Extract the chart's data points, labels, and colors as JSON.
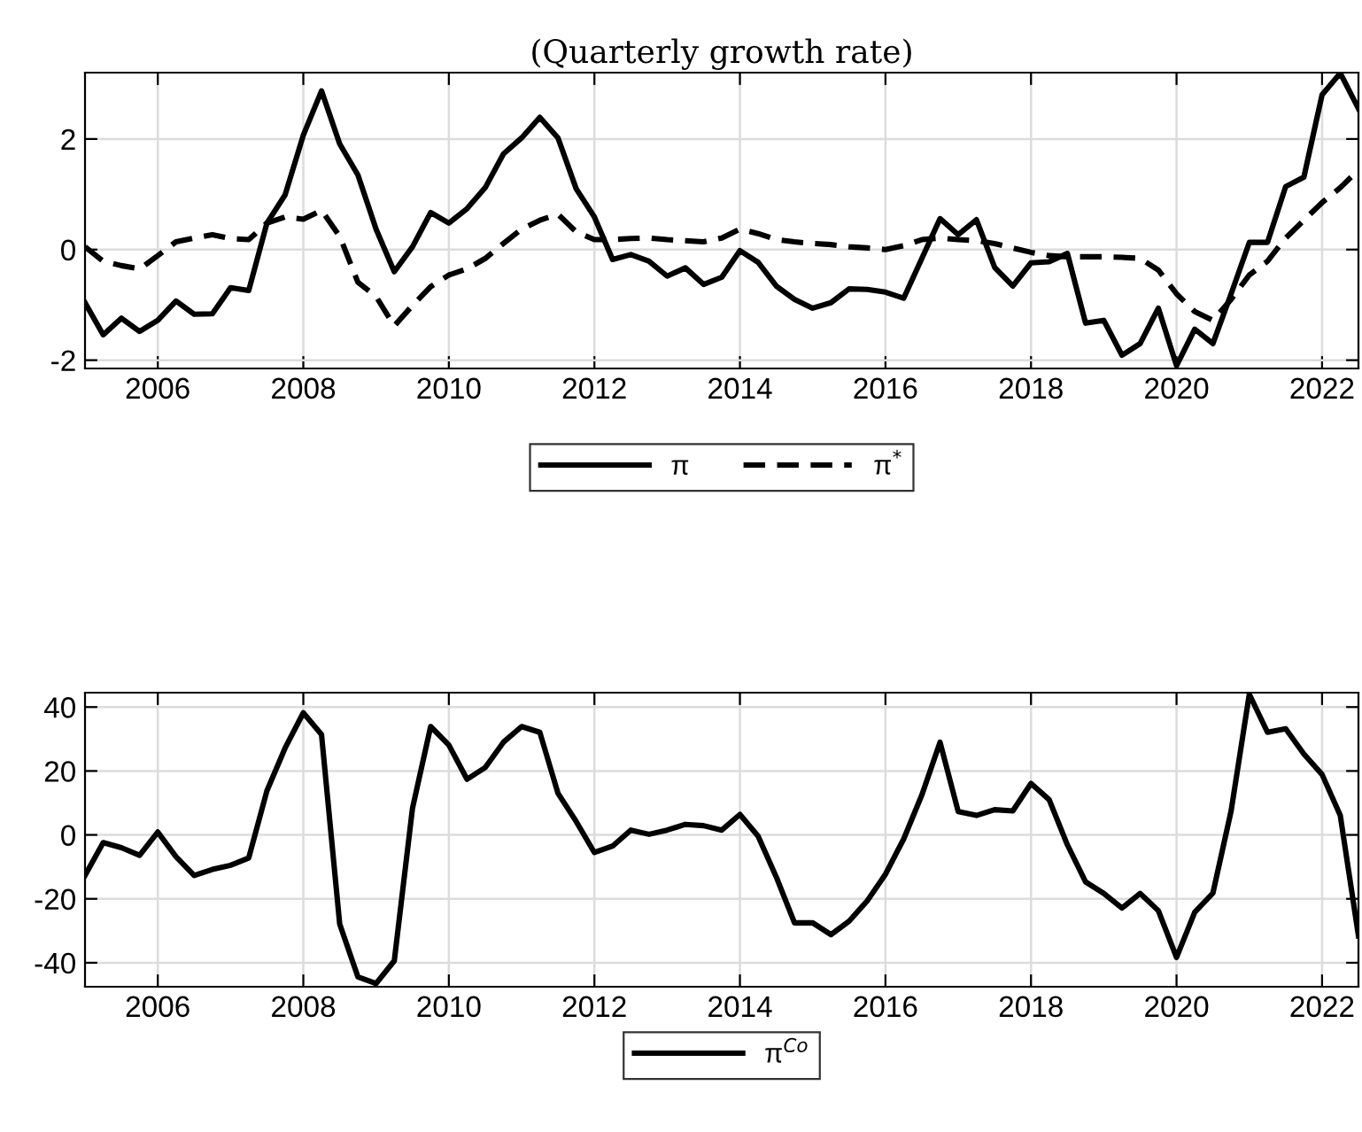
{
  "chart_data": [
    {
      "type": "line",
      "title": "(Quarterly growth rate)",
      "x": [
        2005.0,
        2005.25,
        2005.5,
        2005.75,
        2006.0,
        2006.25,
        2006.5,
        2006.75,
        2007.0,
        2007.25,
        2007.5,
        2007.75,
        2008.0,
        2008.25,
        2008.5,
        2008.75,
        2009.0,
        2009.25,
        2009.5,
        2009.75,
        2010.0,
        2010.25,
        2010.5,
        2010.75,
        2011.0,
        2011.25,
        2011.5,
        2011.75,
        2012.0,
        2012.25,
        2012.5,
        2012.75,
        2013.0,
        2013.25,
        2013.5,
        2013.75,
        2014.0,
        2014.25,
        2014.5,
        2014.75,
        2015.0,
        2015.25,
        2015.5,
        2015.75,
        2016.0,
        2016.25,
        2016.5,
        2016.75,
        2017.0,
        2017.25,
        2017.5,
        2017.75,
        2018.0,
        2018.25,
        2018.5,
        2018.75,
        2019.0,
        2019.25,
        2019.5,
        2019.75,
        2020.0,
        2020.25,
        2020.5,
        2020.75,
        2021.0,
        2021.25,
        2021.5,
        2021.75,
        2022.0,
        2022.25,
        2022.5
      ],
      "series": [
        {
          "name": "π",
          "color": "#000000",
          "line_style": "solid",
          "values": [
            -0.96,
            -1.54,
            -1.24,
            -1.48,
            -1.28,
            -0.93,
            -1.17,
            -1.16,
            -0.69,
            -0.74,
            0.48,
            0.99,
            2.07,
            2.87,
            1.91,
            1.35,
            0.37,
            -0.4,
            0.05,
            0.67,
            0.48,
            0.74,
            1.12,
            1.73,
            2.02,
            2.39,
            2.02,
            1.1,
            0.59,
            -0.18,
            -0.09,
            -0.21,
            -0.48,
            -0.33,
            -0.63,
            -0.5,
            -0.02,
            -0.23,
            -0.66,
            -0.9,
            -1.06,
            -0.96,
            -0.71,
            -0.72,
            -0.77,
            -0.88,
            -0.16,
            0.56,
            0.27,
            0.54,
            -0.32,
            -0.66,
            -0.24,
            -0.22,
            -0.07,
            -1.33,
            -1.28,
            -1.91,
            -1.7,
            -1.06,
            -2.1,
            -1.44,
            -1.7,
            -0.8,
            0.13,
            0.13,
            1.14,
            1.31,
            2.8,
            3.19,
            2.55
          ]
        },
        {
          "name": "π$^{*}$",
          "color": "#000000",
          "line_style": "dashed",
          "values": [
            0.05,
            -0.21,
            -0.29,
            -0.35,
            -0.11,
            0.14,
            0.21,
            0.27,
            0.2,
            0.18,
            0.48,
            0.59,
            0.55,
            0.71,
            0.24,
            -0.59,
            -0.85,
            -1.38,
            -1.01,
            -0.67,
            -0.46,
            -0.35,
            -0.16,
            0.11,
            0.37,
            0.53,
            0.64,
            0.32,
            0.18,
            0.18,
            0.2,
            0.21,
            0.18,
            0.16,
            0.14,
            0.21,
            0.37,
            0.29,
            0.18,
            0.14,
            0.11,
            0.09,
            0.05,
            0.03,
            0.0,
            0.07,
            0.18,
            0.21,
            0.18,
            0.16,
            0.11,
            0.03,
            -0.05,
            -0.11,
            -0.13,
            -0.13,
            -0.13,
            -0.14,
            -0.16,
            -0.37,
            -0.8,
            -1.12,
            -1.28,
            -0.9,
            -0.46,
            -0.21,
            0.21,
            0.53,
            0.85,
            1.12,
            1.44
          ]
        }
      ],
      "xlim": [
        2005,
        2022.5
      ],
      "xticks": [
        2006,
        2008,
        2010,
        2012,
        2014,
        2016,
        2018,
        2020,
        2022
      ],
      "ylim": [
        -2.15,
        3.2
      ],
      "yticks": [
        -2,
        0,
        2
      ],
      "grid": true,
      "legend": "bottom"
    },
    {
      "type": "line",
      "x": [
        2005.0,
        2005.25,
        2005.5,
        2005.75,
        2006.0,
        2006.25,
        2006.5,
        2006.75,
        2007.0,
        2007.25,
        2007.5,
        2007.75,
        2008.0,
        2008.25,
        2008.5,
        2008.75,
        2009.0,
        2009.25,
        2009.5,
        2009.75,
        2010.0,
        2010.25,
        2010.5,
        2010.75,
        2011.0,
        2011.25,
        2011.5,
        2011.75,
        2012.0,
        2012.25,
        2012.5,
        2012.75,
        2013.0,
        2013.25,
        2013.5,
        2013.75,
        2014.0,
        2014.25,
        2014.5,
        2014.75,
        2015.0,
        2015.25,
        2015.5,
        2015.75,
        2016.0,
        2016.25,
        2016.5,
        2016.75,
        2017.0,
        2017.25,
        2017.5,
        2017.75,
        2018.0,
        2018.25,
        2018.5,
        2018.75,
        2019.0,
        2019.25,
        2019.5,
        2019.75,
        2020.0,
        2020.25,
        2020.5,
        2020.75,
        2021.0,
        2021.25,
        2021.5,
        2021.75,
        2022.0,
        2022.25,
        2022.5
      ],
      "series": [
        {
          "name": "π$^{Co}$",
          "color": "#000000",
          "line_style": "solid",
          "values": [
            -12.7,
            -2.4,
            -4.0,
            -6.4,
            0.9,
            -6.8,
            -12.7,
            -10.8,
            -9.5,
            -7.2,
            13.8,
            27.2,
            38.2,
            31.4,
            -27.9,
            -44.4,
            -46.5,
            -39.4,
            8.3,
            33.9,
            28.1,
            17.4,
            21.1,
            29.0,
            33.9,
            32.1,
            13.0,
            4.2,
            -5.5,
            -3.5,
            1.5,
            0.2,
            1.5,
            3.3,
            2.9,
            1.5,
            6.4,
            -0.4,
            -13.2,
            -27.5,
            -27.5,
            -31.2,
            -27.0,
            -20.6,
            -12.3,
            -1.3,
            12.5,
            29.0,
            7.3,
            6.1,
            7.9,
            7.5,
            16.1,
            11.0,
            -3.1,
            -14.7,
            -18.3,
            -22.9,
            -18.3,
            -23.7,
            -38.3,
            -24.2,
            -18.2,
            7.5,
            44.0,
            32.1,
            33.2,
            25.3,
            18.9,
            6.1,
            -31.6
          ]
        }
      ],
      "xlim": [
        2005,
        2022.5
      ],
      "xticks": [
        2006,
        2008,
        2010,
        2012,
        2014,
        2016,
        2018,
        2020,
        2022
      ],
      "ylim": [
        -47.5,
        44.5
      ],
      "yticks": [
        -40,
        -20,
        0,
        20,
        40
      ],
      "grid": true,
      "legend": "bottom"
    }
  ]
}
